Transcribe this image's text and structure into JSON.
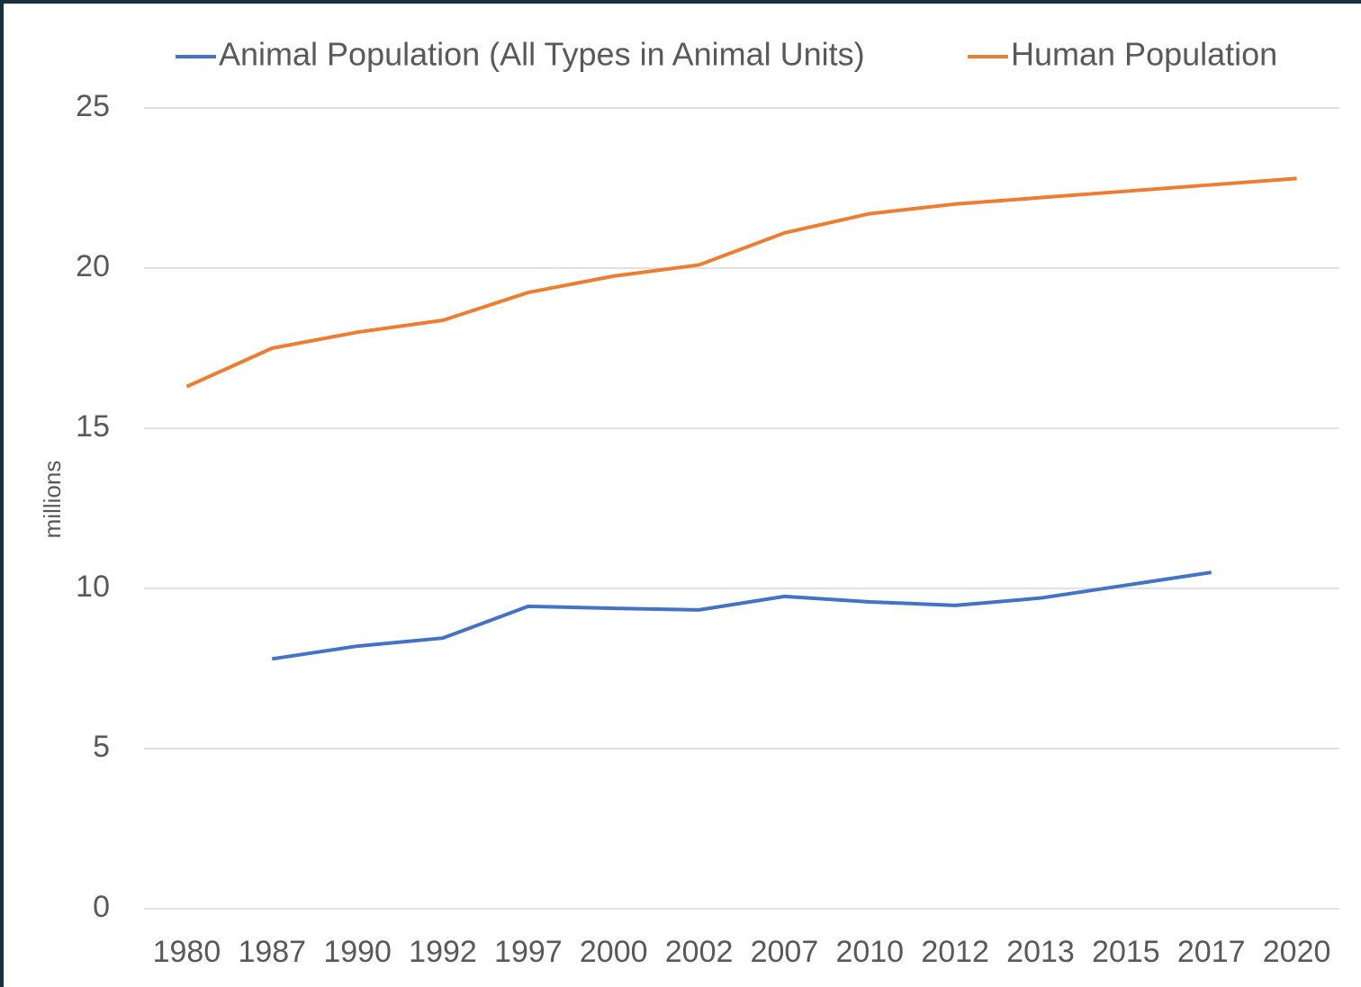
{
  "chart_data": {
    "type": "line",
    "y_label": "millions",
    "categories": [
      "1980",
      "1987",
      "1990",
      "1992",
      "1997",
      "2000",
      "2002",
      "2007",
      "2010",
      "2012",
      "2013",
      "2015",
      "2017",
      "2020"
    ],
    "series": [
      {
        "name": "Animal Population (All Types in Animal Units)",
        "color": "#4472c4",
        "values": [
          null,
          7.8,
          8.2,
          8.45,
          9.44,
          9.38,
          9.33,
          9.75,
          9.58,
          9.47,
          9.7,
          10.1,
          10.5,
          null
        ]
      },
      {
        "name": "Human Population",
        "color": "#ed7d31",
        "values": [
          16.3,
          17.5,
          18.0,
          18.37,
          19.24,
          19.75,
          20.1,
          21.1,
          21.7,
          22.0,
          22.2,
          22.4,
          22.6,
          22.8
        ]
      }
    ],
    "ylim": [
      0,
      25
    ],
    "yticks": [
      0,
      5,
      10,
      15,
      20,
      25
    ],
    "grid": true,
    "legend": "top"
  }
}
